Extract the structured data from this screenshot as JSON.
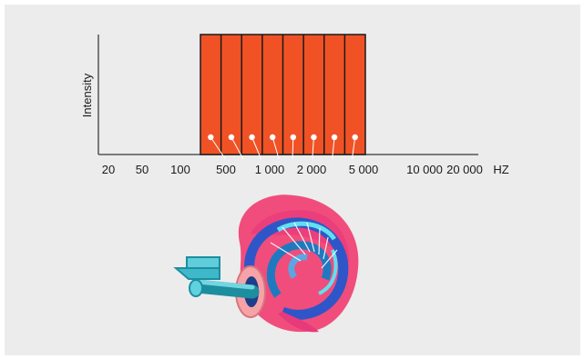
{
  "figure": {
    "y_label": "Intensity",
    "x_ticks": [
      "20",
      "50",
      "100",
      "500",
      "1 000",
      "2 000",
      "5 000",
      "10 000",
      "20 000",
      "HZ"
    ],
    "band_count": 8,
    "colors": {
      "panel_background": "#ececec",
      "band_fill": "#f05225",
      "band_stroke": "#1a1a1a",
      "electrode_dot": "#ffffff",
      "axis": "#555555"
    }
  },
  "illustration": {
    "subject": "cochlea-with-electrode-array-icon"
  }
}
